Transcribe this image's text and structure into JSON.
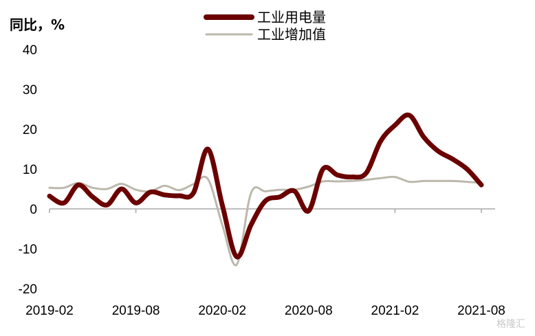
{
  "chart_data": {
    "type": "line",
    "ylabel": "同比，%",
    "ylim": [
      -20,
      40
    ],
    "yticks": [
      "40",
      "30",
      "20",
      "10",
      "0",
      "-10",
      "-20"
    ],
    "ytick_values": [
      40,
      30,
      20,
      10,
      0,
      -10,
      -20
    ],
    "xticks": [
      "2019-02",
      "2019-08",
      "2020-02",
      "2020-08",
      "2021-02",
      "2021-08"
    ],
    "x": [
      "2019-02",
      "2019-03",
      "2019-04",
      "2019-05",
      "2019-06",
      "2019-07",
      "2019-08",
      "2019-09",
      "2019-10",
      "2019-11",
      "2019-12",
      "2020-01",
      "2020-02",
      "2020-03",
      "2020-04",
      "2020-05",
      "2020-06",
      "2020-07",
      "2020-08",
      "2020-09",
      "2020-10",
      "2020-11",
      "2020-12",
      "2021-01",
      "2021-02",
      "2021-03",
      "2021-04",
      "2021-05",
      "2021-06",
      "2021-07",
      "2021-08"
    ],
    "series": [
      {
        "name": "工业用电量",
        "color": "#6b0000",
        "values": [
          3.2,
          1.5,
          6.0,
          3.0,
          1.0,
          5.0,
          1.5,
          4.2,
          3.5,
          3.3,
          4.0,
          15.0,
          1.0,
          -12.0,
          -4.0,
          2.0,
          3.0,
          4.5,
          -0.5,
          10.0,
          8.5,
          8.0,
          9.0,
          17.0,
          21.0,
          23.5,
          18.0,
          14.5,
          12.5,
          10.0,
          6.0
        ]
      },
      {
        "name": "工业增加值",
        "color": "#bcb8ac",
        "values": [
          5.3,
          5.3,
          6.5,
          5.3,
          5.0,
          6.3,
          4.8,
          4.4,
          5.8,
          4.7,
          6.2,
          7.5,
          -4.0,
          -14.0,
          4.0,
          4.4,
          4.8,
          4.8,
          5.6,
          6.9,
          6.9,
          7.0,
          7.3,
          7.7,
          8.0,
          6.8,
          7.0,
          7.0,
          7.0,
          6.8,
          6.5
        ]
      }
    ],
    "legend_position": "top-center",
    "grid": false
  },
  "watermark": "格隆汇"
}
